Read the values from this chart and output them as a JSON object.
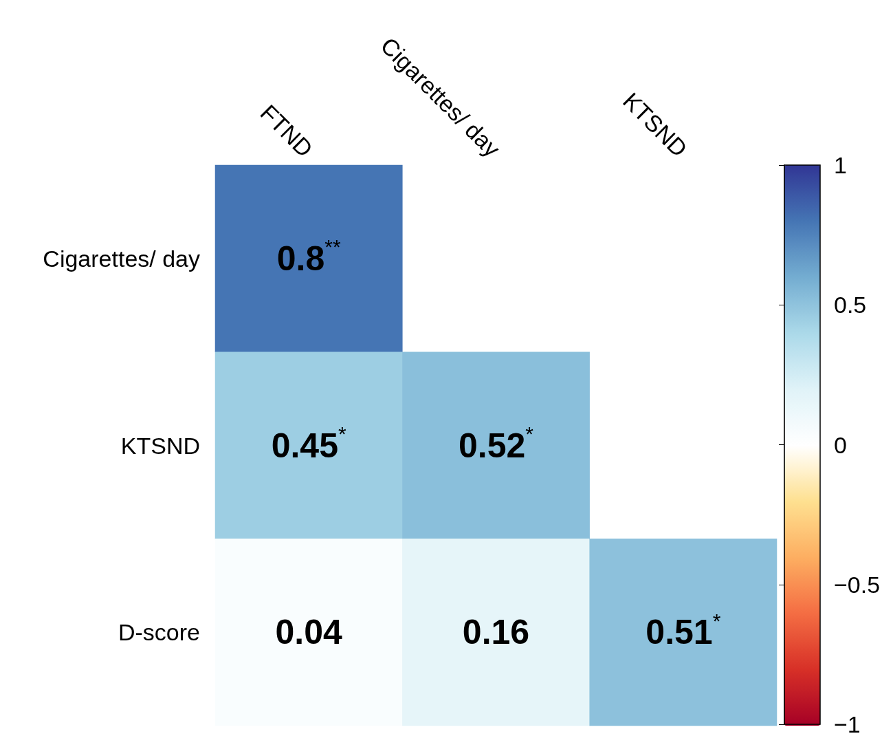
{
  "chart_data": {
    "type": "heatmap",
    "categories": [
      "FTND",
      "Cigarettes/ day",
      "KTSND"
    ],
    "y_categories": [
      "Cigarettes/ day",
      "KTSND",
      "D-score"
    ],
    "cells": [
      [
        0.8,
        null,
        null
      ],
      [
        0.45,
        0.52,
        null
      ],
      [
        0.04,
        0.16,
        0.51
      ]
    ],
    "cell_labels": [
      [
        "0.8$^{**}$",
        null,
        null
      ],
      [
        "0.45$^{*}$",
        "0.52$^{*}$",
        null
      ],
      [
        "0.04",
        "0.16",
        "0.51$^{*}$"
      ]
    ],
    "clim": [
      -1,
      1
    ],
    "cticks": [
      {
        "value": -1,
        "label": "−1"
      },
      {
        "value": -0.5,
        "label": "−0.5"
      },
      0,
      0.5,
      1
    ]
  }
}
